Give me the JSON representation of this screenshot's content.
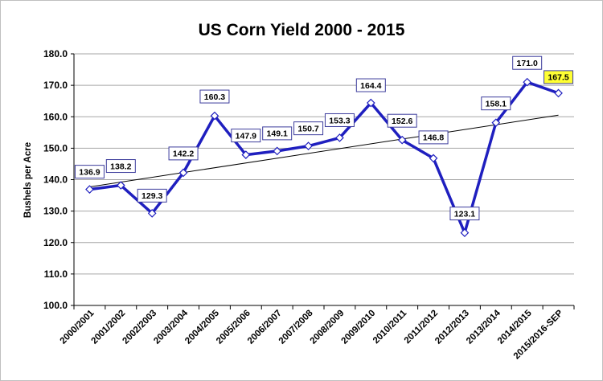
{
  "chart_data": {
    "type": "line",
    "title": "US Corn Yield 2000 - 2015",
    "xlabel": "",
    "ylabel": "Bushels per Acre",
    "ylim": [
      100,
      180
    ],
    "yticks": [
      "100.0",
      "110.0",
      "120.0",
      "130.0",
      "140.0",
      "150.0",
      "160.0",
      "170.0",
      "180.0"
    ],
    "categories": [
      "2000/2001",
      "2001/2002",
      "2002/2003",
      "2003/2004",
      "2004/2005",
      "2005/2006",
      "2006/2007",
      "2007/2008",
      "2008/2009",
      "2009/2010",
      "2010/2011",
      "2011/2012",
      "2012/2013",
      "2013/2014",
      "2014/2015",
      "2015/2016-SEP"
    ],
    "series": [
      {
        "values": [
          136.9,
          138.2,
          129.3,
          142.2,
          160.3,
          147.9,
          149.1,
          150.7,
          153.3,
          164.4,
          152.6,
          146.8,
          123.1,
          158.1,
          171.0,
          167.5
        ],
        "labels": [
          "136.9",
          "138.2",
          "129.3",
          "142.2",
          "160.3",
          "147.9",
          "149.1",
          "150.7",
          "153.3",
          "164.4",
          "152.6",
          "146.8",
          "123.1",
          "158.1",
          "171.0",
          "167.5"
        ],
        "color": "#1f1fbf",
        "highlight_last_label": "#ffff33"
      }
    ],
    "trendline": {
      "start": 137.7,
      "end": 160.5,
      "color": "#000000"
    },
    "grid": true,
    "gridline_color": "#a6a6a6",
    "legend": "none"
  }
}
